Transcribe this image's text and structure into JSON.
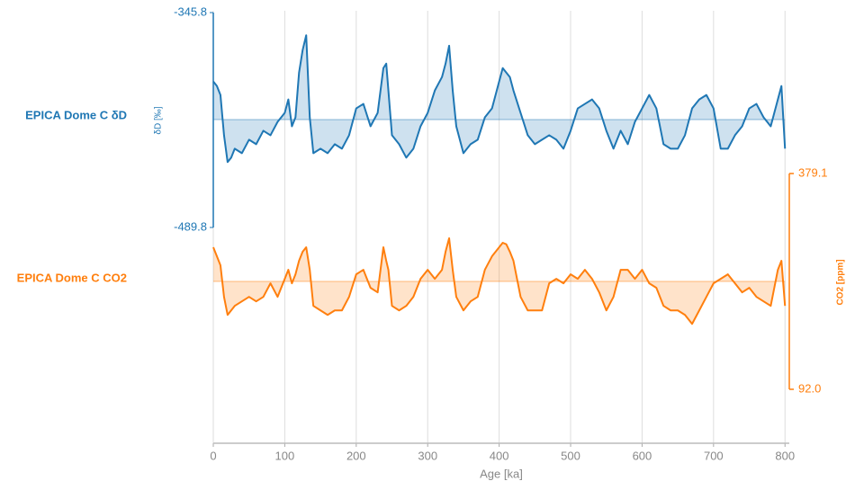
{
  "chart_data": {
    "type": "line",
    "x_label": "Age [ka]",
    "xlim": [
      0,
      806
    ],
    "xticks": [
      0,
      100,
      200,
      300,
      400,
      500,
      600,
      700,
      800
    ],
    "grid": true,
    "x": [
      0,
      5,
      10,
      15,
      20,
      25,
      30,
      40,
      50,
      60,
      70,
      80,
      90,
      100,
      105,
      110,
      115,
      120,
      125,
      130,
      135,
      140,
      150,
      160,
      170,
      180,
      190,
      200,
      210,
      220,
      230,
      238,
      242,
      245,
      250,
      260,
      270,
      280,
      290,
      300,
      310,
      320,
      325,
      330,
      335,
      340,
      350,
      360,
      370,
      380,
      390,
      400,
      405,
      410,
      415,
      420,
      430,
      440,
      450,
      460,
      470,
      480,
      490,
      500,
      510,
      520,
      530,
      540,
      550,
      560,
      570,
      580,
      590,
      600,
      610,
      620,
      630,
      640,
      650,
      660,
      670,
      680,
      690,
      700,
      710,
      720,
      730,
      740,
      750,
      760,
      770,
      780,
      790,
      795,
      800
    ],
    "y_label": "δD [‰]",
    "ylim": [
      -489.8,
      -345.8
    ],
    "yticks": [
      -489.8,
      -345.8
    ],
    "y2_label": "CO2 [ppm]",
    "y2lim": [
      92,
      379.1
    ],
    "y2ticks": [
      {
        "value": 92,
        "label": "92.0"
      },
      379.1
    ],
    "series": [
      {
        "name": "EPICA Dome C δD",
        "color": "#1f77b4",
        "baseline": -417.5,
        "values": [
          -392,
          -395,
          -401,
          -428,
          -446,
          -443,
          -437,
          -440,
          -431,
          -434,
          -425,
          -428,
          -419,
          -413,
          -404,
          -422,
          -416,
          -386,
          -371,
          -361,
          -416,
          -440,
          -437,
          -440,
          -434,
          -437,
          -428,
          -410,
          -407,
          -422,
          -413,
          -383,
          -380,
          -398,
          -428,
          -434,
          -443,
          -437,
          -422,
          -413,
          -398,
          -389,
          -380,
          -368,
          -398,
          -422,
          -440,
          -434,
          -431,
          -416,
          -410,
          -392,
          -383,
          -386,
          -389,
          -398,
          -413,
          -428,
          -434,
          -431,
          -428,
          -431,
          -437,
          -425,
          -410,
          -407,
          -404,
          -410,
          -425,
          -437,
          -425,
          -434,
          -419,
          -410,
          -401,
          -410,
          -434,
          -437,
          -437,
          -428,
          -410,
          -404,
          -401,
          -410,
          -437,
          -437,
          -428,
          -422,
          -410,
          -407,
          -416,
          -422,
          -404,
          -395,
          -437
        ]
      },
      {
        "name": "EPICA Dome C CO2",
        "color": "#ff7f0e",
        "axis": "y2",
        "baseline": 235.6,
        "values": [
          281,
          269,
          257,
          215,
          191,
          197,
          203,
          209,
          215,
          209,
          215,
          233,
          215,
          239,
          251,
          233,
          245,
          263,
          275,
          281,
          251,
          203,
          197,
          191,
          197,
          197,
          215,
          245,
          251,
          227,
          221,
          281,
          263,
          251,
          203,
          197,
          203,
          215,
          239,
          251,
          239,
          251,
          275,
          293,
          251,
          215,
          197,
          209,
          215,
          251,
          269,
          281,
          287,
          285,
          275,
          263,
          215,
          197,
          197,
          197,
          233,
          239,
          233,
          245,
          239,
          251,
          239,
          221,
          197,
          215,
          251,
          251,
          239,
          251,
          233,
          227,
          203,
          197,
          197,
          191,
          179,
          197,
          215,
          233,
          239,
          245,
          233,
          221,
          227,
          215,
          209,
          203,
          251,
          263,
          203
        ]
      }
    ]
  }
}
